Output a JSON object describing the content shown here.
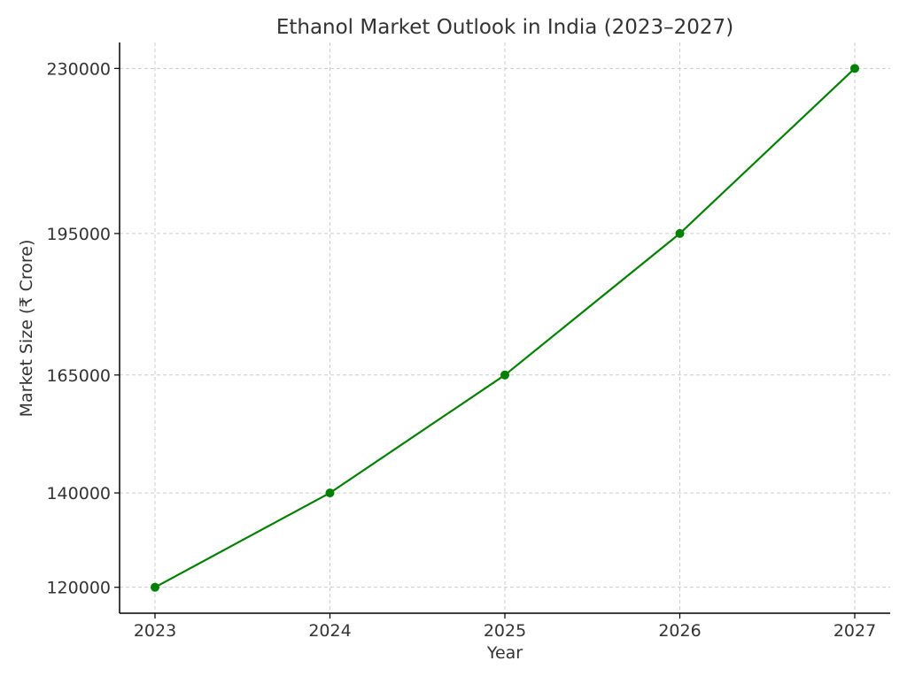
{
  "chart_data": {
    "type": "line",
    "title": "Ethanol Market Outlook in India (2023–2027)",
    "xlabel": "Year",
    "ylabel": "Market Size (₹ Crore)",
    "x": [
      "2023",
      "2024",
      "2025",
      "2026",
      "2027"
    ],
    "series": [
      {
        "values": [
          120000,
          140000,
          165000,
          195000,
          230000
        ],
        "color": "#008000",
        "marker": "circle"
      }
    ],
    "ylim": [
      114500,
      235500
    ],
    "yticks": [
      120000,
      140000,
      165000,
      195000,
      230000
    ],
    "ytick_labels": [
      "120000",
      "140000",
      "165000",
      "195000",
      "230000"
    ],
    "grid": true,
    "grid_style": "dashed",
    "grid_color": "#cccccc",
    "axis_color": "#000000"
  }
}
